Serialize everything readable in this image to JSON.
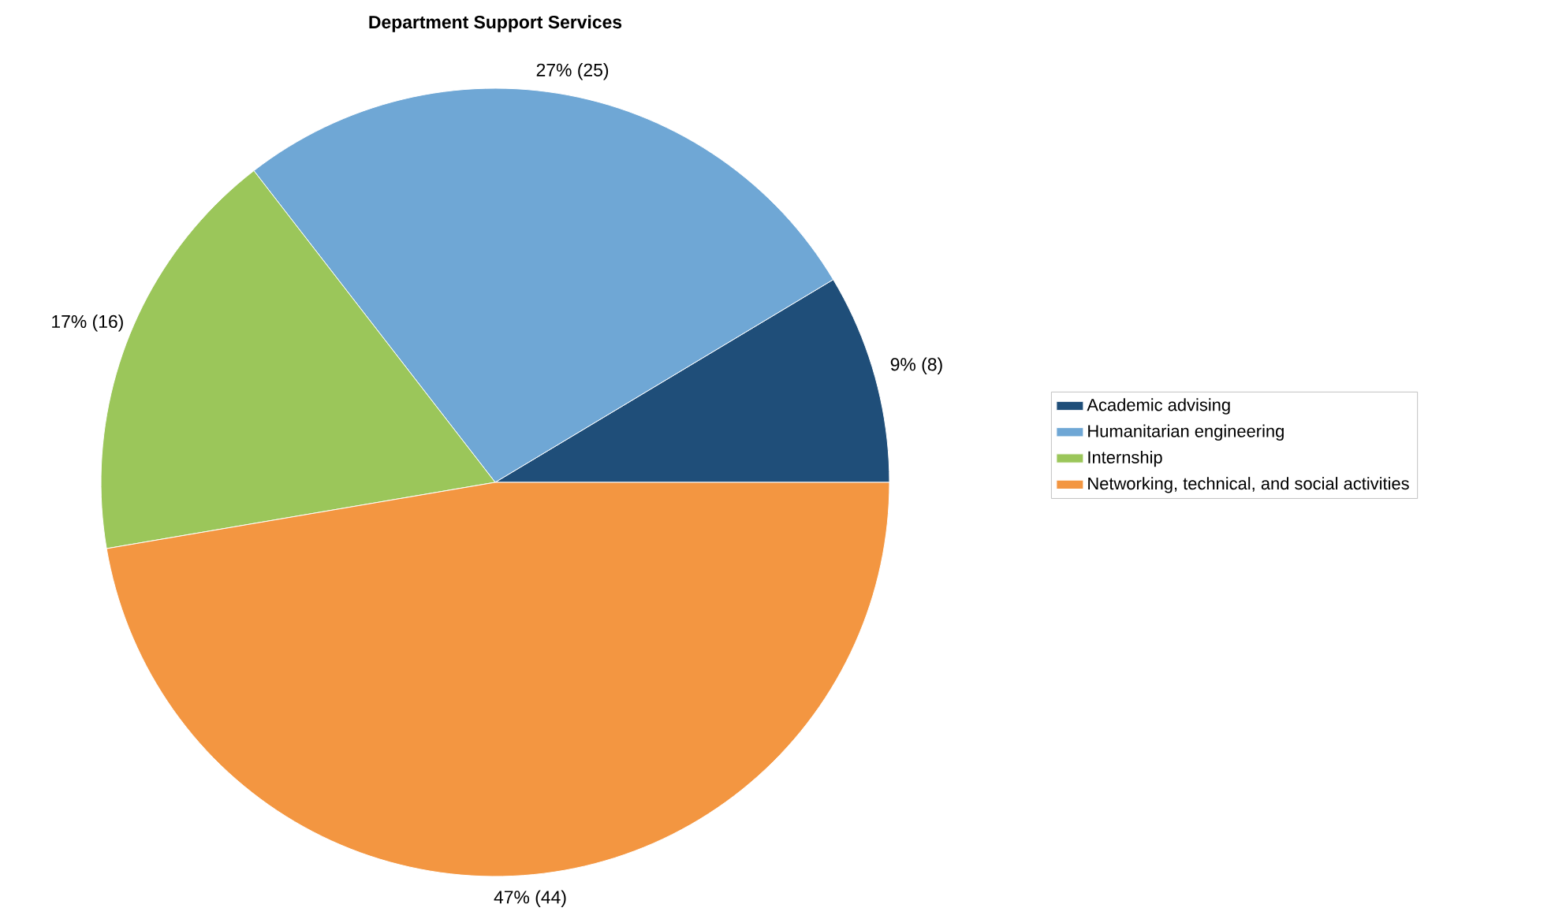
{
  "chart_data": {
    "type": "pie",
    "title": "Department Support Services",
    "categories": [
      "Academic advising",
      "Humanitarian engineering",
      "Internship",
      "Networking, technical, and social activities"
    ],
    "values": [
      8,
      25,
      16,
      44
    ],
    "colors": [
      "#1f4e79",
      "#6fa7d5",
      "#9bc65a",
      "#f39641"
    ],
    "value_labels": [
      "9% (8)",
      "27% (25)",
      "17% (16)",
      "47% (44)"
    ],
    "legend": "right"
  }
}
